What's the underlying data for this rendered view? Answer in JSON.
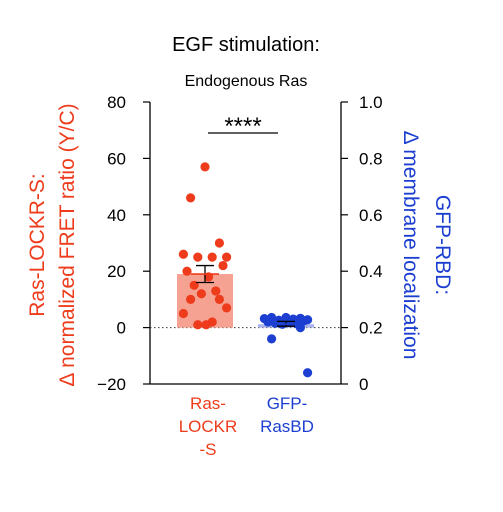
{
  "header": {
    "title": "EGF stimulation:",
    "subtitle": "Endogenous Ras"
  },
  "colors": {
    "red": "#ee3b1b",
    "red_fill": "#f6a292",
    "blue": "#1d3fd1",
    "blue_fill": "#a9b4ee",
    "axis": "#000000"
  },
  "chart_data": {
    "type": "bar",
    "title": "EGF stimulation:",
    "subtitle": "Endogenous Ras",
    "categories": [
      "Ras-\nLOCKR\n-S",
      "GFP-\nRasBD"
    ],
    "left_axis": {
      "label_line1": "Ras-LOCKR-S:",
      "label_line2": "Δ normalized FRET ratio (Y/C)",
      "ylim": [
        -20,
        80
      ],
      "ticks": [
        "80",
        "60",
        "40",
        "20",
        "0",
        "−20"
      ],
      "tick_values": [
        80,
        60,
        40,
        20,
        0,
        -20
      ]
    },
    "right_axis": {
      "label_line1": "GFP-RBD:",
      "label_line2": "Δ membrane localization",
      "ylim": [
        0,
        1.0
      ],
      "ticks": [
        "1.0",
        "0.8",
        "0.6",
        "0.4",
        "0.2",
        "0"
      ],
      "tick_values": [
        1.0,
        0.8,
        0.6,
        0.4,
        0.2,
        0
      ]
    },
    "significance": "****",
    "series": [
      {
        "axis": "left",
        "mean": 19,
        "sem_low": 16,
        "sem_high": 22,
        "points": [
          57,
          46,
          30,
          26,
          25,
          25,
          25,
          22,
          20,
          18,
          15,
          13,
          12,
          10,
          10,
          7,
          5,
          2,
          1,
          1
        ]
      },
      {
        "axis": "right",
        "mean": 0.212,
        "sem_low": 0.205,
        "sem_high": 0.222,
        "points": [
          0.236,
          0.236,
          0.233,
          0.232,
          0.23,
          0.228,
          0.226,
          0.224,
          0.22,
          0.218,
          0.216,
          0.214,
          0.212,
          0.2,
          0.16,
          0.04
        ]
      }
    ]
  }
}
